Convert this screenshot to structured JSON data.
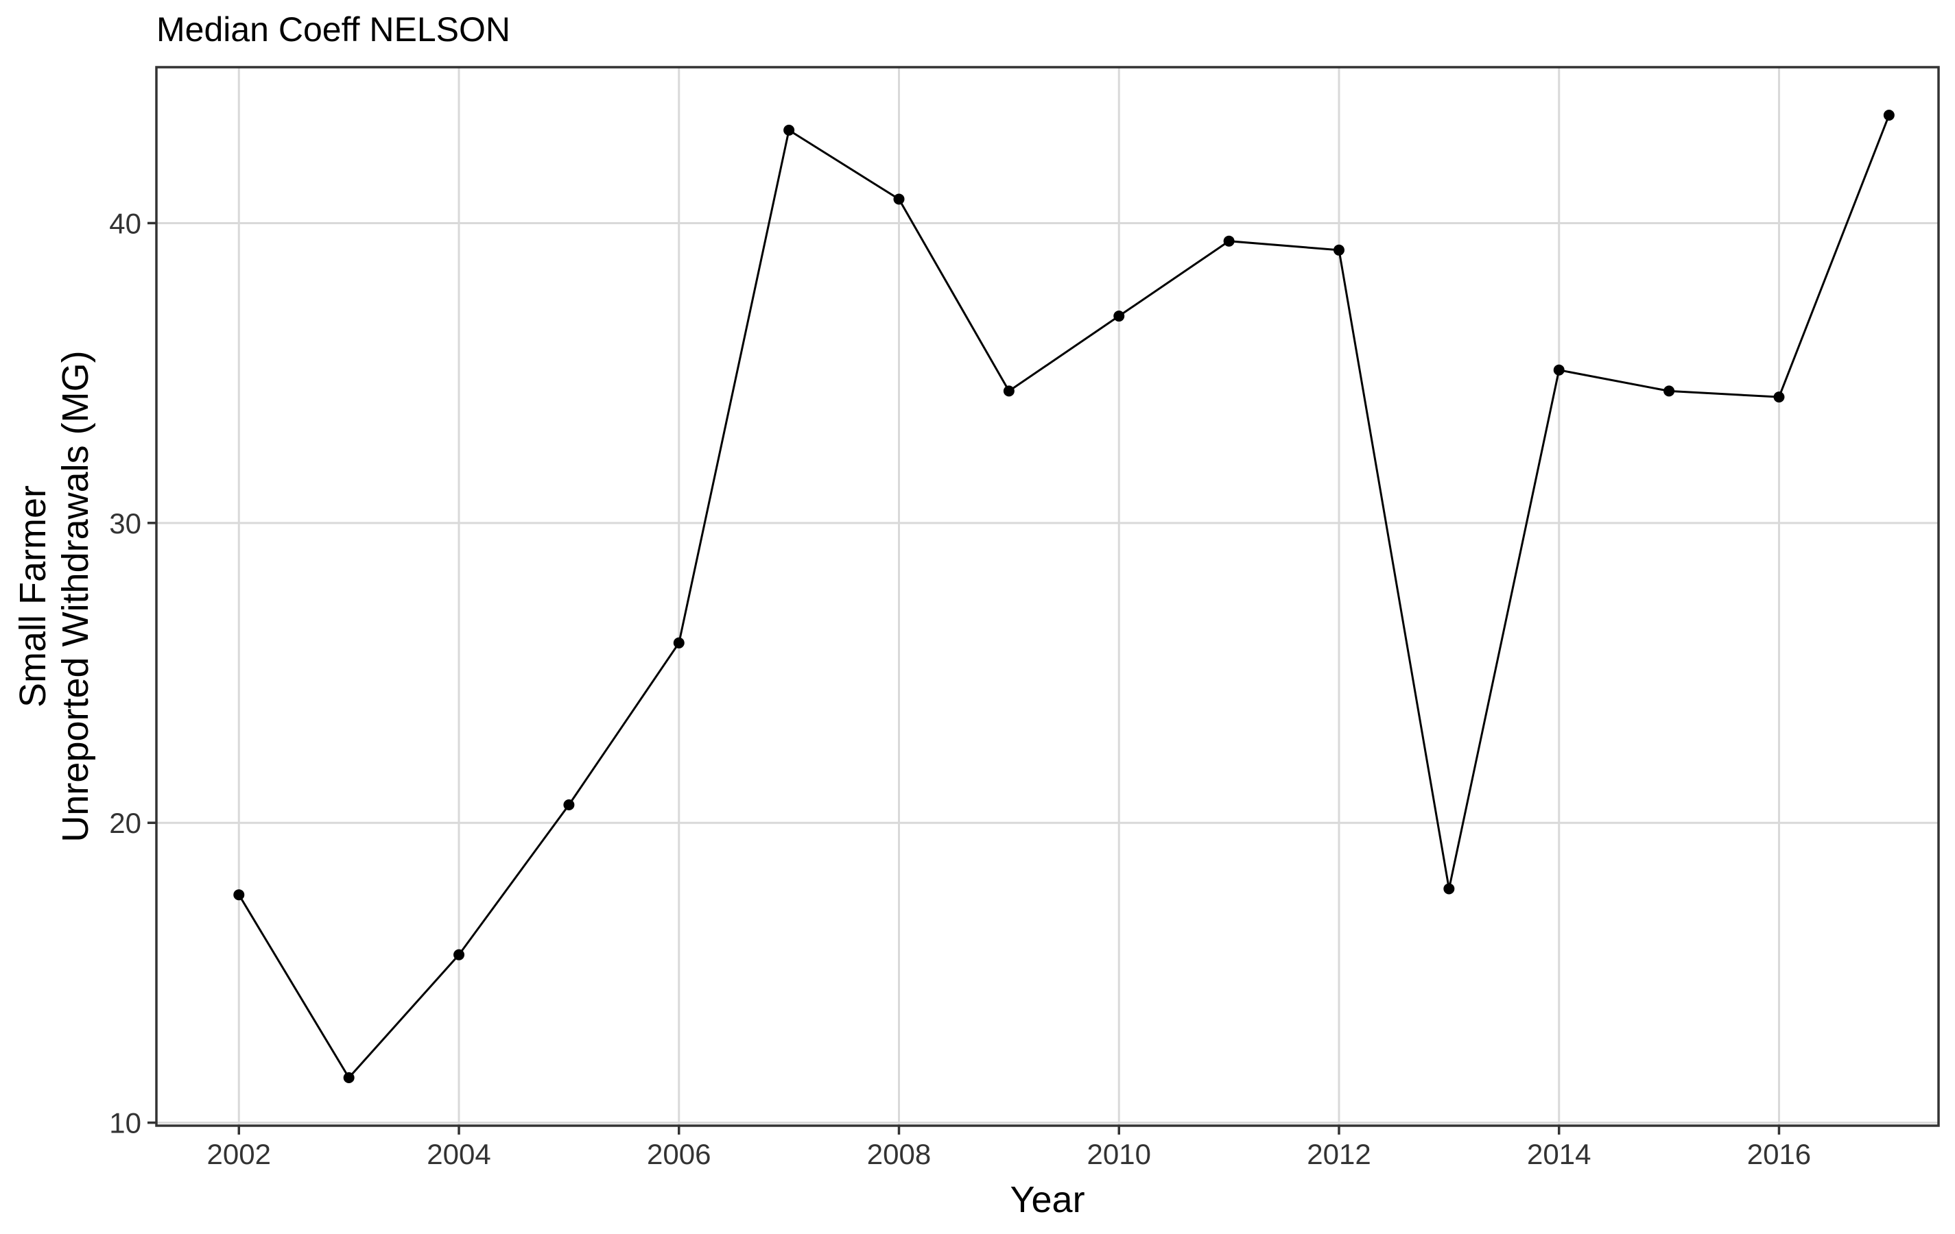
{
  "chart_data": {
    "type": "line",
    "title": "Median Coeff NELSON",
    "xlabel": "Year",
    "ylabel_lines": [
      "Small Farmer",
      "Unreported Withdrawals (MG)"
    ],
    "xlim": [
      2001.25,
      2017.45
    ],
    "ylim": [
      9.9,
      45.2
    ],
    "x_ticks": [
      2002,
      2004,
      2006,
      2008,
      2010,
      2012,
      2014,
      2016
    ],
    "y_ticks": [
      10,
      20,
      30,
      40
    ],
    "grid": true,
    "x": [
      2002,
      2003,
      2004,
      2005,
      2006,
      2007,
      2008,
      2009,
      2010,
      2011,
      2012,
      2013,
      2014,
      2015,
      2016,
      2017
    ],
    "series": [
      {
        "values": [
          17.6,
          11.5,
          15.6,
          20.6,
          26.0,
          43.1,
          40.8,
          34.4,
          36.9,
          39.4,
          39.1,
          17.8,
          35.1,
          34.4,
          34.2,
          43.6
        ]
      }
    ]
  }
}
